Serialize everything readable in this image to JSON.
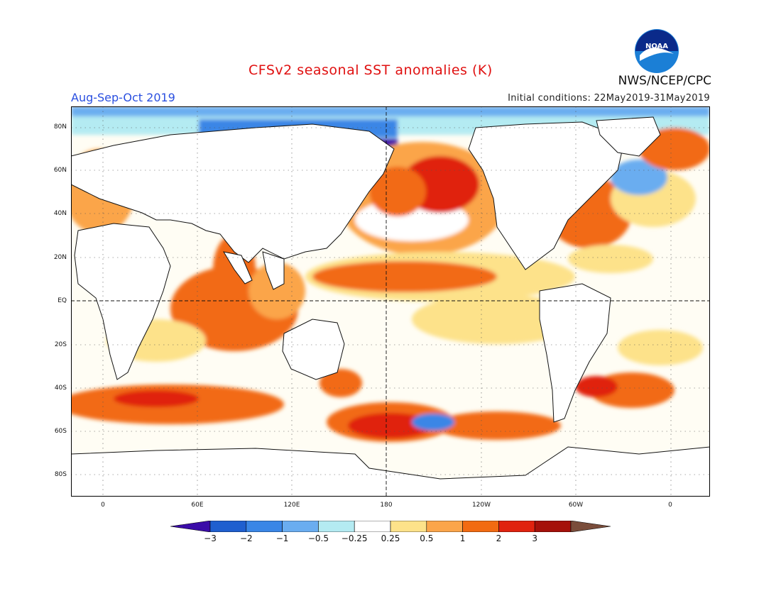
{
  "header": {
    "title": "CFSv2 seasonal SST anomalies (K)",
    "season": "Aug-Sep-Oct 2019",
    "initial_conditions": "Initial conditions: 22May2019-31May2019",
    "agency": "NWS/NCEP/CPC",
    "logo_text": "NOAA"
  },
  "axes": {
    "lat_ticks": [
      "80N",
      "60N",
      "40N",
      "20N",
      "EQ",
      "20S",
      "40S",
      "60S",
      "80S"
    ],
    "lon_ticks": [
      "0",
      "60E",
      "120E",
      "180",
      "120W",
      "60W",
      "0"
    ]
  },
  "colorbar": {
    "labels": [
      "-3",
      "-2",
      "-1",
      "-0.5",
      "-0.25",
      "0.25",
      "0.5",
      "1",
      "2",
      "3"
    ],
    "colors": [
      "#3b0ca8",
      "#1f5fcf",
      "#3a86e6",
      "#6aadf0",
      "#b4ebf2",
      "#ffffff",
      "#fde28a",
      "#fba54a",
      "#f26b12",
      "#e0230f",
      "#a5110a",
      "#7a4d3b"
    ]
  }
}
